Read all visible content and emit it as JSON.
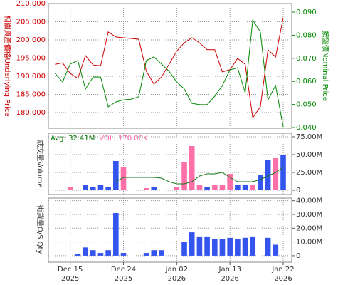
{
  "chart_data": [
    {
      "type": "line",
      "ylabel": "相關資產價格Underlying Price",
      "y2label": "按盤價Nominal Price",
      "ylim": [
        175.7,
        210
      ],
      "yticks": [
        {
          "value": 180,
          "label": "180.000"
        },
        {
          "value": 185,
          "label": "185.000"
        },
        {
          "value": 190,
          "label": "190.000"
        },
        {
          "value": 195,
          "label": "195.000"
        },
        {
          "value": 200,
          "label": "200.000"
        },
        {
          "value": 205,
          "label": "205.000"
        },
        {
          "value": 210,
          "label": "210.000"
        }
      ],
      "y2lim": [
        0.0397,
        0.0937
      ],
      "y2ticks": [
        {
          "value": 0.04,
          "label": "0.040"
        },
        {
          "value": 0.05,
          "label": "0.050"
        },
        {
          "value": 0.06,
          "label": "0.060"
        },
        {
          "value": 0.07,
          "label": "0.070"
        },
        {
          "value": 0.08,
          "label": "0.080"
        },
        {
          "value": 0.09,
          "label": "0.090"
        }
      ],
      "grid": true,
      "series": [
        {
          "color": "#cc0000",
          "values": [
            193.3,
            193.7,
            190.8,
            189.4,
            195.7,
            193.1,
            192.9,
            202.2,
            200.8,
            200.6,
            200.4,
            200.2,
            191.4,
            187.9,
            189.8,
            193.3,
            196.9,
            199.2,
            200.6,
            199.2,
            197.3,
            197.3,
            191.2,
            191.8,
            194.9,
            193.3,
            178.6,
            181.6,
            197.3,
            195.3,
            206.1
          ]
        },
        {
          "color": "#008800",
          "axis": "y2",
          "values": [
            0.0635,
            0.0598,
            0.0675,
            0.069,
            0.0567,
            0.0619,
            0.0619,
            0.049,
            0.0511,
            0.052,
            0.0523,
            0.0533,
            0.069,
            0.0706,
            0.0675,
            0.0644,
            0.0598,
            0.0567,
            0.0505,
            0.0499,
            0.0499,
            0.0536,
            0.0582,
            0.065,
            0.0659,
            0.0551,
            0.0866,
            0.0814,
            0.052,
            0.0582,
            0.0403
          ]
        }
      ]
    },
    {
      "type": "bar",
      "ylabel": "成交量Volume",
      "ylim": [
        -6,
        80
      ],
      "yticks": [
        {
          "value": 0,
          "label": "0"
        },
        {
          "value": 25,
          "label": "25.00M"
        },
        {
          "value": 50,
          "label": "50.00M"
        },
        {
          "value": 75,
          "label": "75.00M"
        }
      ],
      "grid": true,
      "annotations": [
        {
          "text": "Avg: 32.41M",
          "color": "#007700"
        },
        {
          "text": "VOL: 170.00K",
          "color": "#ff66aa"
        }
      ],
      "values": [
        0,
        1,
        4,
        0,
        7,
        5,
        8,
        5,
        41,
        33,
        0,
        0,
        3,
        5,
        0,
        0,
        5,
        40,
        62,
        8,
        5,
        8,
        7,
        23,
        8,
        8,
        7,
        22,
        43,
        45,
        50
      ],
      "colors": [
        "#3355ee",
        "#3355ee",
        "#ff6fa8",
        "#3355ee",
        "#3355ee",
        "#3355ee",
        "#3355ee",
        "#3355ee",
        "#3355ee",
        "#ff6fa8",
        "#3355ee",
        "#3355ee",
        "#ff6fa8",
        "#3355ee",
        "#3355ee",
        "#3355ee",
        "#ff6fa8",
        "#ff6fa8",
        "#ff6fa8",
        "#ff6fa8",
        "#3355ee",
        "#ff6fa8",
        "#ff6fa8",
        "#ff6fa8",
        "#3355ee",
        "#3355ee",
        "#ff6fa8",
        "#3355ee",
        "#3355ee",
        "#ff6fa8",
        "#3355ee"
      ],
      "average_line": {
        "color": "#117711",
        "values": [
          null,
          null,
          null,
          null,
          null,
          null,
          null,
          null,
          12,
          18,
          18,
          18,
          18,
          18,
          17,
          12,
          9,
          9,
          12,
          20,
          23,
          23,
          25,
          18,
          12,
          12,
          12,
          15,
          20,
          25,
          32
        ]
      }
    },
    {
      "type": "bar",
      "ylabel": "街貨量O/S Qty.",
      "ylim": [
        -4.7,
        41.9
      ],
      "yticks": [
        {
          "value": 0,
          "label": "0"
        },
        {
          "value": 10,
          "label": "10.00M"
        },
        {
          "value": 20,
          "label": "20.00M"
        },
        {
          "value": 30,
          "label": "30.00M"
        },
        {
          "value": 40,
          "label": "40.00M"
        }
      ],
      "grid": true,
      "color": "#3355ee",
      "values": [
        0,
        0,
        0,
        1,
        6,
        4,
        2,
        4,
        31,
        2,
        0,
        0,
        2,
        4,
        4,
        0,
        0,
        10,
        17,
        14,
        14,
        12,
        12,
        13,
        12,
        13,
        14,
        0,
        13,
        8,
        0
      ],
      "categories": [
        null,
        null,
        "Dec 15",
        null,
        null,
        null,
        null,
        null,
        null,
        "Dec 24",
        null,
        null,
        null,
        null,
        null,
        null,
        "Jan 02",
        null,
        null,
        null,
        null,
        null,
        null,
        "Jan 13",
        null,
        null,
        null,
        null,
        null,
        null,
        "Jan 22"
      ],
      "category_years": [
        null,
        null,
        "2025",
        null,
        null,
        null,
        null,
        null,
        null,
        "2025",
        null,
        null,
        null,
        null,
        null,
        null,
        "2026",
        null,
        null,
        null,
        null,
        null,
        null,
        "2026",
        null,
        null,
        null,
        null,
        null,
        null,
        "2026"
      ]
    }
  ]
}
